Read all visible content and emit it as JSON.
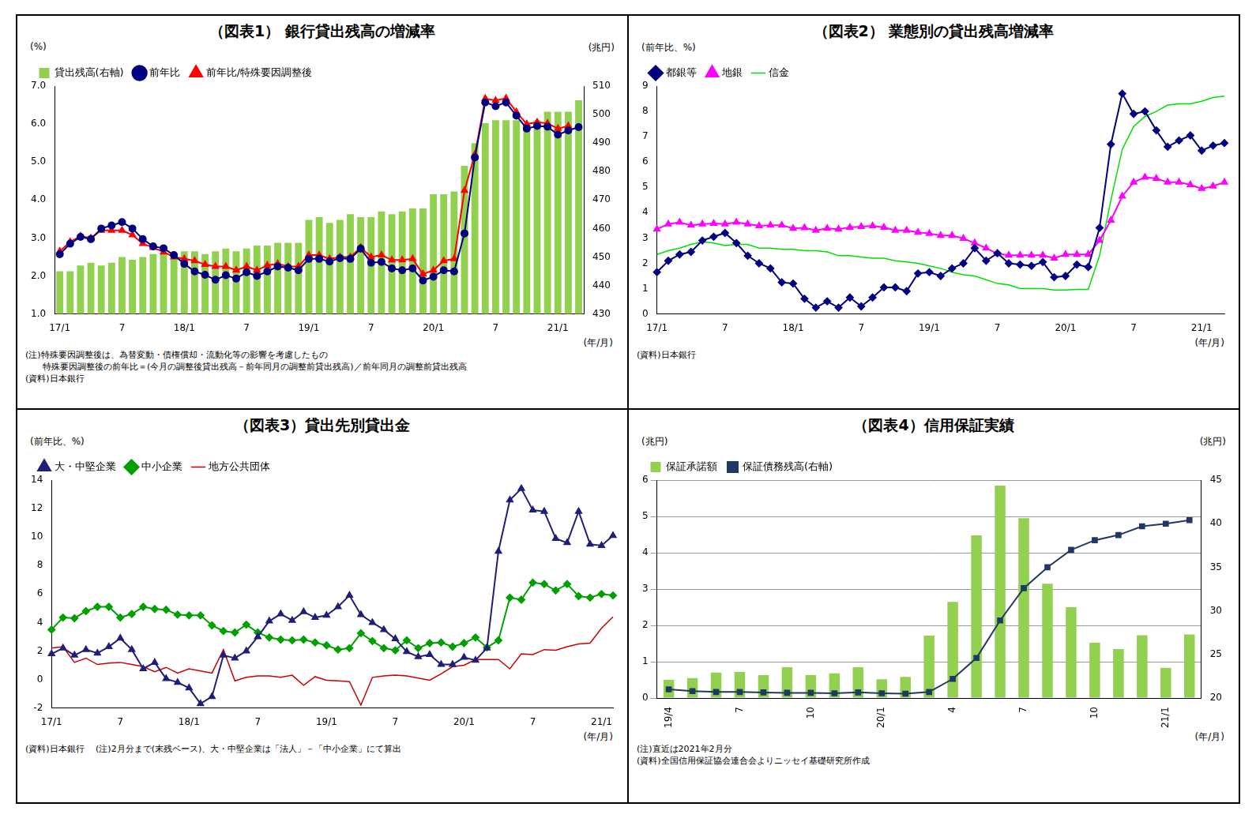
{
  "chart_data": [
    {
      "type": "bar",
      "title": "（図表1） 銀行貸出残高の増減率",
      "y_label": "(%)",
      "y2_label": "(兆円)",
      "x_label": "(年/月)",
      "notes": [
        "(注)特殊要因調整後は、為替変動・債権償却・流動化等の影響を考慮したもの",
        "　　特殊要因調整後の前年比＝(今月の調整後貸出残高－前年同月の調整前貸出残高)／前年同月の調整前貸出残高",
        "(資料)日本銀行"
      ],
      "categories": [
        "17/1",
        null,
        null,
        null,
        null,
        null,
        "7",
        null,
        null,
        null,
        null,
        null,
        "18/1",
        null,
        null,
        null,
        null,
        null,
        "7",
        null,
        null,
        null,
        null,
        null,
        "19/1",
        null,
        null,
        null,
        null,
        null,
        "7",
        null,
        null,
        null,
        null,
        null,
        "20/1",
        null,
        null,
        null,
        null,
        null,
        "7",
        null,
        null,
        null,
        null,
        null,
        "21/1",
        null,
        null
      ],
      "ylim": [
        1.0,
        7.0
      ],
      "yticks": [
        {
          "value": 1,
          "label": "1.0"
        },
        {
          "value": 2,
          "label": "2.0"
        },
        {
          "value": 3,
          "label": "3.0"
        },
        {
          "value": 4,
          "label": "4.0"
        },
        {
          "value": 5,
          "label": "5.0"
        },
        {
          "value": 6,
          "label": "6.0"
        },
        {
          "value": 7,
          "label": "7.0"
        }
      ],
      "y2lim": [
        430,
        510
      ],
      "y2ticks": [
        430,
        440,
        450,
        460,
        470,
        480,
        490,
        500,
        510
      ],
      "grid": false,
      "legend": "upper left",
      "series": [
        {
          "name": "貸出残高(右軸)",
          "type": "bar",
          "axis": "y2",
          "color": "#92d050",
          "values": [
            445,
            445,
            447,
            448,
            447,
            448,
            450,
            449,
            450,
            451,
            451,
            451,
            452,
            452,
            451,
            452,
            453,
            452,
            453,
            454,
            454,
            455,
            455,
            455,
            463,
            464,
            462,
            463,
            465,
            464,
            464,
            466,
            465,
            466,
            467,
            467,
            472,
            472,
            473,
            482,
            490,
            497,
            498,
            498,
            498,
            496,
            498,
            501,
            501,
            501,
            505
          ]
        },
        {
          "name": "前年比",
          "type": "line",
          "color": "#000080",
          "marker": "circle",
          "line_style": "solid",
          "values": [
            2.57,
            2.85,
            3.03,
            2.97,
            3.25,
            3.33,
            3.42,
            3.25,
            2.97,
            2.78,
            2.73,
            2.55,
            2.32,
            2.12,
            2.03,
            1.9,
            2.02,
            1.93,
            2.1,
            2.0,
            2.12,
            2.25,
            2.22,
            2.15,
            2.45,
            2.45,
            2.38,
            2.47,
            2.45,
            2.72,
            2.35,
            2.37,
            2.2,
            2.15,
            2.2,
            1.88,
            1.98,
            2.15,
            2.12,
            3.12,
            5.12,
            6.57,
            6.47,
            6.57,
            6.22,
            5.88,
            5.95,
            5.93,
            5.72,
            5.83,
            5.92
          ]
        },
        {
          "name": "前年比/特殊要因調整後",
          "type": "line",
          "color": "#ff0000",
          "marker": "triangle",
          "line_style": "solid",
          "values": [
            2.65,
            2.9,
            3.05,
            3.0,
            3.2,
            3.2,
            3.2,
            3.08,
            2.85,
            2.75,
            2.63,
            2.5,
            2.45,
            2.4,
            2.3,
            2.25,
            2.25,
            2.15,
            2.25,
            2.15,
            2.28,
            2.32,
            2.25,
            2.25,
            2.55,
            2.55,
            2.45,
            2.5,
            2.5,
            2.75,
            2.5,
            2.55,
            2.42,
            2.42,
            2.45,
            2.05,
            2.15,
            2.4,
            2.45,
            4.25,
            5.2,
            6.67,
            6.62,
            6.68,
            6.32,
            6.0,
            6.05,
            6.02,
            5.88,
            5.95,
            null
          ]
        }
      ]
    },
    {
      "type": "line",
      "title": "（図表2） 業態別の貸出残高増減率",
      "y_label": "(前年比、%)",
      "x_label": "(年/月)",
      "notes": [
        "(資料)日本銀行"
      ],
      "categories": [
        "17/1",
        null,
        null,
        null,
        null,
        null,
        "7",
        null,
        null,
        null,
        null,
        null,
        "18/1",
        null,
        null,
        null,
        null,
        null,
        "7",
        null,
        null,
        null,
        null,
        null,
        "19/1",
        null,
        null,
        null,
        null,
        null,
        "7",
        null,
        null,
        null,
        null,
        null,
        "20/1",
        null,
        null,
        null,
        null,
        null,
        "7",
        null,
        null,
        null,
        null,
        null,
        "21/1",
        null,
        null
      ],
      "ylim": [
        0,
        9
      ],
      "yticks": [
        0,
        1,
        2,
        3,
        4,
        5,
        6,
        7,
        8,
        9
      ],
      "grid": false,
      "legend": "upper left",
      "series": [
        {
          "name": "都銀等",
          "color": "#000080",
          "marker": "diamond",
          "line_style": "solid",
          "values": [
            1.65,
            2.1,
            2.35,
            2.45,
            2.9,
            3.05,
            3.2,
            2.8,
            2.3,
            2.0,
            1.8,
            1.25,
            1.2,
            0.6,
            0.25,
            0.5,
            0.25,
            0.65,
            0.3,
            0.65,
            1.05,
            1.05,
            0.9,
            1.6,
            1.65,
            1.5,
            1.8,
            2.0,
            2.6,
            2.1,
            2.4,
            2.0,
            1.95,
            1.9,
            2.05,
            1.45,
            1.5,
            1.95,
            1.85,
            3.4,
            6.7,
            8.7,
            7.9,
            8.0,
            7.25,
            6.6,
            6.85,
            7.05,
            6.45,
            6.65,
            6.75
          ]
        },
        {
          "name": "地銀",
          "color": "#ff00ff",
          "marker": "triangle",
          "line_style": "solid",
          "values": [
            3.35,
            3.55,
            3.62,
            3.5,
            3.55,
            3.57,
            3.55,
            3.62,
            3.55,
            3.48,
            3.5,
            3.5,
            3.38,
            3.4,
            3.3,
            3.38,
            3.35,
            3.42,
            3.45,
            3.48,
            3.42,
            3.3,
            3.3,
            3.22,
            3.18,
            3.1,
            3.1,
            2.98,
            2.8,
            2.6,
            2.38,
            2.32,
            2.32,
            2.32,
            2.32,
            2.2,
            2.35,
            2.35,
            2.35,
            2.9,
            3.7,
            4.65,
            5.2,
            5.4,
            5.35,
            5.2,
            5.2,
            5.1,
            4.95,
            5.05,
            5.2
          ]
        },
        {
          "name": "信金",
          "color": "#00e000",
          "marker": "none",
          "line_style": "solid",
          "values": [
            2.35,
            2.5,
            2.6,
            2.75,
            2.85,
            2.8,
            2.7,
            2.75,
            2.75,
            2.6,
            2.6,
            2.55,
            2.55,
            2.5,
            2.5,
            2.45,
            2.3,
            2.3,
            2.25,
            2.2,
            2.2,
            2.1,
            2.05,
            2.0,
            1.9,
            1.8,
            1.65,
            1.55,
            1.5,
            1.35,
            1.2,
            1.15,
            1.0,
            1.0,
            1.0,
            0.95,
            0.95,
            0.97,
            0.97,
            2.3,
            4.5,
            6.5,
            7.4,
            7.8,
            8.0,
            8.25,
            8.3,
            8.3,
            8.4,
            8.55,
            8.6
          ]
        }
      ]
    },
    {
      "type": "line",
      "title": "（図表3）貸出先別貸出金",
      "y_label": "(前年比、%)",
      "x_label": "(年/月)",
      "notes": [
        "(資料)日本銀行　 (注)2月分まで(末残ベース)、大・中堅企業は「法人」－「中小企業」にて算出"
      ],
      "categories": [
        "17/1",
        null,
        null,
        null,
        null,
        null,
        "7",
        null,
        null,
        null,
        null,
        null,
        "18/1",
        null,
        null,
        null,
        null,
        null,
        "7",
        null,
        null,
        null,
        null,
        null,
        "19/1",
        null,
        null,
        null,
        null,
        null,
        "7",
        null,
        null,
        null,
        null,
        null,
        "20/1",
        null,
        null,
        null,
        null,
        null,
        "7",
        null,
        null,
        null,
        null,
        null,
        "21/1",
        null
      ],
      "ylim": [
        -2,
        14
      ],
      "yticks": [
        -2,
        0,
        2,
        4,
        6,
        8,
        10,
        12,
        14
      ],
      "grid": false,
      "legend": "upper left",
      "series": [
        {
          "name": "大・中堅企業",
          "color": "#1f1f7a",
          "marker": "triangle",
          "line_style": "solid",
          "values": [
            1.8,
            2.2,
            1.7,
            2.1,
            1.85,
            2.3,
            2.9,
            2.1,
            0.75,
            1.2,
            0.05,
            -0.2,
            -0.6,
            -1.7,
            -1.2,
            1.7,
            1.5,
            2.0,
            3.0,
            4.1,
            4.6,
            4.15,
            4.75,
            4.35,
            4.5,
            5.1,
            5.9,
            4.55,
            4.0,
            3.5,
            2.85,
            1.95,
            1.6,
            1.75,
            1.05,
            1.05,
            1.55,
            1.35,
            2.2,
            9.0,
            12.6,
            13.4,
            11.9,
            11.8,
            9.9,
            9.6,
            11.8,
            9.5,
            9.4,
            10.1
          ]
        },
        {
          "name": "中小企業",
          "color": "#00a000",
          "marker": "diamond",
          "line_style": "solid",
          "values": [
            3.5,
            4.35,
            4.3,
            4.8,
            5.1,
            5.1,
            4.35,
            4.6,
            5.1,
            4.95,
            4.9,
            4.55,
            4.5,
            4.5,
            3.8,
            3.4,
            3.3,
            3.85,
            3.3,
            2.95,
            2.8,
            2.75,
            2.8,
            2.6,
            2.4,
            2.1,
            2.2,
            3.25,
            2.7,
            2.2,
            2.05,
            2.75,
            2.2,
            2.55,
            2.6,
            2.3,
            2.55,
            2.95,
            2.25,
            2.75,
            5.75,
            5.6,
            6.8,
            6.7,
            6.25,
            6.7,
            5.85,
            5.75,
            6.0,
            5.9
          ]
        },
        {
          "name": "地方公共団体",
          "color": "#cc0000",
          "marker": "none",
          "line_style": "solid",
          "values": [
            2.2,
            2.3,
            1.2,
            1.5,
            1.05,
            1.15,
            1.2,
            1.05,
            0.9,
            0.55,
            0.85,
            0.45,
            0.75,
            0.6,
            0.45,
            2.1,
            -0.1,
            0.15,
            0.25,
            0.25,
            0.15,
            0.3,
            -0.4,
            0.2,
            -0.05,
            -0.1,
            -0.15,
            -1.8,
            0.15,
            0.25,
            0.3,
            0.25,
            0.1,
            -0.05,
            0.4,
            0.9,
            1.0,
            1.4,
            1.4,
            1.4,
            0.75,
            1.8,
            1.75,
            2.1,
            2.05,
            2.3,
            2.5,
            2.55,
            3.6,
            4.4
          ]
        }
      ]
    },
    {
      "type": "bar",
      "title": "（図表4）信用保証実績",
      "y_label": "(兆円)",
      "y2_label": "(兆円)",
      "x_label": "(年/月)",
      "notes": [
        "(注)直近は2021年2月分",
        "(資料)全国信用保証協会連合会よりニッセイ基礎研究所作成"
      ],
      "categories": [
        "19/4",
        null,
        null,
        "7",
        null,
        null,
        "10",
        null,
        null,
        "20/1",
        null,
        null,
        "4",
        null,
        null,
        "7",
        null,
        null,
        "10",
        null,
        null,
        "21/1",
        null
      ],
      "ylim": [
        0,
        6
      ],
      "yticks": [
        0,
        1,
        2,
        3,
        4,
        5,
        6
      ],
      "y2lim": [
        20,
        45
      ],
      "y2ticks": [
        20,
        25,
        30,
        35,
        40,
        45
      ],
      "grid": true,
      "legend": "upper left",
      "series": [
        {
          "name": "保証承諾額",
          "type": "bar",
          "color": "#92d050",
          "values": [
            0.5,
            0.55,
            0.7,
            0.72,
            0.63,
            0.85,
            0.63,
            0.68,
            0.85,
            0.52,
            0.58,
            1.72,
            2.65,
            4.48,
            5.85,
            4.95,
            3.15,
            2.5,
            1.52,
            1.35,
            1.73,
            0.83,
            1.75
          ]
        },
        {
          "name": "保証債務残高(右軸)",
          "type": "line",
          "axis": "y2",
          "color": "#1f3864",
          "marker": "square",
          "line_style": "solid",
          "values": [
            21.0,
            20.8,
            20.7,
            20.7,
            20.65,
            20.6,
            20.6,
            20.55,
            20.65,
            20.55,
            20.5,
            20.7,
            22.2,
            24.6,
            28.9,
            32.6,
            35.0,
            37.0,
            38.1,
            38.7,
            39.7,
            40.0,
            40.4
          ]
        }
      ]
    }
  ]
}
